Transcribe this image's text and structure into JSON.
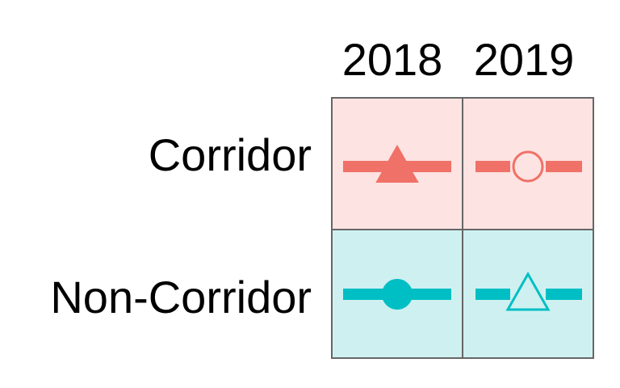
{
  "chart_data": {
    "type": "legend-grid",
    "columns": [
      "2018",
      "2019"
    ],
    "rows": [
      "Corridor",
      "Non-Corridor"
    ],
    "cells": [
      {
        "row": "Corridor",
        "column": "2018",
        "marker": "triangle",
        "filled": true,
        "color": "#f07167",
        "background": "#fde3e2"
      },
      {
        "row": "Corridor",
        "column": "2019",
        "marker": "circle",
        "filled": false,
        "color": "#f07167",
        "background": "#fde3e2"
      },
      {
        "row": "Non-Corridor",
        "column": "2018",
        "marker": "circle",
        "filled": true,
        "color": "#00bfc4",
        "background": "#cff0f0"
      },
      {
        "row": "Non-Corridor",
        "column": "2019",
        "marker": "triangle",
        "filled": false,
        "color": "#00bfc4",
        "background": "#cff0f0"
      }
    ],
    "border_color": "#666666"
  }
}
